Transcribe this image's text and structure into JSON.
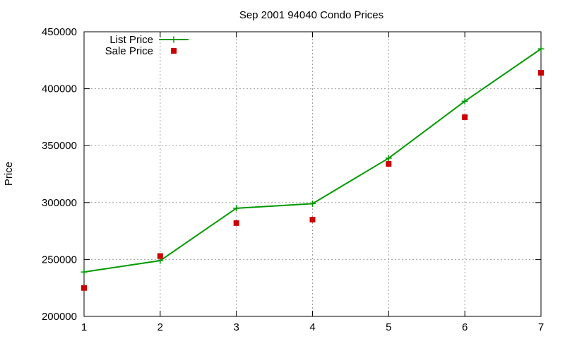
{
  "chart_data": {
    "type": "line",
    "title": "Sep 2001 94040 Condo Prices",
    "xlabel": "",
    "ylabel": "Price",
    "x": [
      1,
      2,
      3,
      4,
      5,
      6,
      7
    ],
    "xlim": [
      1,
      7
    ],
    "ylim": [
      200000,
      450000
    ],
    "xticks": [
      1,
      2,
      3,
      4,
      5,
      6,
      7
    ],
    "yticks": [
      200000,
      250000,
      300000,
      350000,
      400000,
      450000
    ],
    "grid": true,
    "legend_position": "top-left",
    "series": [
      {
        "name": "List Price",
        "style": "linespoints",
        "marker": "plus",
        "color": "#009900",
        "values": [
          239000,
          249000,
          295000,
          299000,
          339000,
          389000,
          435000
        ]
      },
      {
        "name": "Sale Price",
        "style": "points",
        "marker": "square",
        "color": "#cc0000",
        "values": [
          225000,
          253000,
          282000,
          285000,
          334000,
          375000,
          414000
        ]
      }
    ]
  }
}
